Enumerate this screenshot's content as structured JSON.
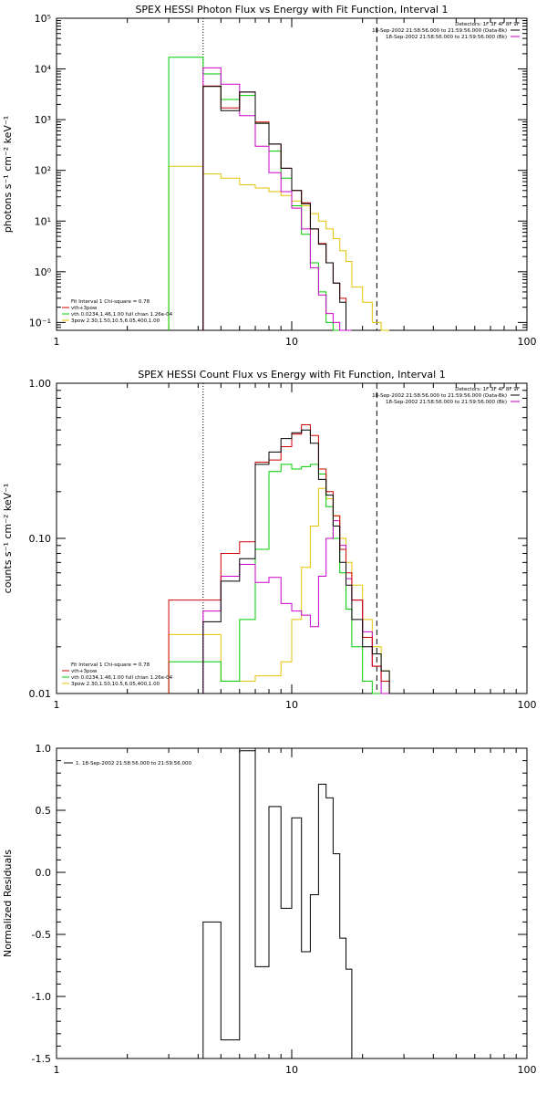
{
  "colors": {
    "black": "#000000",
    "red": "#d00000",
    "green": "#00cc00",
    "magenta": "#cc00cc",
    "yellow": "#e6c200"
  },
  "chart_data": [
    {
      "type": "line",
      "title": "SPEX HESSI Photon Flux vs Energy with Fit Function, Interval 1",
      "ylabel": "photons s⁻¹ cm⁻² keV⁻¹",
      "xscale": "log",
      "yscale": "log",
      "xlim": [
        1,
        100
      ],
      "ylim": [
        0.07,
        100000
      ],
      "xticks": [
        "1",
        "10",
        "100"
      ],
      "yticks": [
        "10⁻¹",
        "10⁰",
        "10¹",
        "10²",
        "10³",
        "10⁴",
        "10⁵"
      ],
      "vlines": [
        {
          "x": 4.2,
          "style": "dotted"
        },
        {
          "x": 23.0,
          "style": "dashed"
        }
      ],
      "legend_top": [
        "Detectors: 1F 3F 4F 8F 9F",
        "18-Sep-2002 21:58:56.000 to 21:59:56.000 (Data-Bk)",
        "18-Sep-2002 21:58:56.000 to 21:59:56.000 (Bk)"
      ],
      "legend_bottom": [
        "Fit Interval 1    Chi-square = 0.78",
        "vth+3pow",
        "vth 0.0234,1.46,1.00  full chian 1.26e-04",
        "3pow 2.30,1.50,10.5,6.05,400,1.00"
      ],
      "edges": [
        3,
        4.2,
        5,
        6,
        7,
        8,
        9,
        10,
        11,
        12,
        13,
        14,
        15,
        16,
        17,
        18,
        20,
        22,
        24,
        26
      ],
      "series": [
        {
          "name": "Data-Bk",
          "color": "black",
          "values": [
            null,
            4500,
            1500,
            3500,
            850,
            330,
            110,
            40,
            22,
            7,
            3.5,
            1.5,
            0.6,
            0.25,
            null,
            null,
            null,
            null,
            null
          ]
        },
        {
          "name": "vth+3pow",
          "color": "red",
          "values": [
            null,
            4600,
            1700,
            3500,
            900,
            330,
            110,
            40,
            23,
            7,
            3.6,
            1.5,
            0.6,
            0.3,
            null,
            null,
            null,
            null,
            null
          ]
        },
        {
          "name": "vth",
          "color": "green",
          "values": [
            17000,
            8000,
            2500,
            3000,
            850,
            240,
            70,
            20,
            5.5,
            1.5,
            0.4,
            0.1,
            0.04,
            null,
            null,
            null,
            null,
            null,
            null
          ]
        },
        {
          "name": "3pow",
          "color": "yellow",
          "values": [
            120,
            85,
            70,
            52,
            45,
            38,
            32,
            25,
            20,
            14,
            10,
            7,
            4.5,
            2.6,
            1.6,
            0.5,
            0.25,
            0.1,
            0.05
          ]
        },
        {
          "name": "Bk",
          "color": "magenta",
          "values": [
            null,
            10500,
            5000,
            1200,
            300,
            90,
            38,
            18,
            7,
            1.2,
            0.35,
            0.15,
            0.1,
            0.07,
            0.05,
            null,
            null,
            null,
            null
          ]
        }
      ]
    },
    {
      "type": "line",
      "title": "SPEX HESSI Count Flux vs Energy with Fit Function, Interval 1",
      "ylabel": "counts s⁻¹ cm⁻² keV⁻¹",
      "xscale": "log",
      "yscale": "log",
      "xlim": [
        1,
        100
      ],
      "ylim": [
        0.01,
        1.0
      ],
      "xticks": [
        "1",
        "10",
        "100"
      ],
      "yticks": [
        "0.01",
        "0.10",
        "1.00"
      ],
      "vlines": [
        {
          "x": 4.2,
          "style": "dotted"
        },
        {
          "x": 23.0,
          "style": "dashed"
        }
      ],
      "legend_top": [
        "Detectors: 1F 3F 4F 8F 9F",
        "18-Sep-2002 21:58:56.000 to 21:59:56.000 (Data-Bk)",
        "18-Sep-2002 21:58:56.000 to 21:59:56.000 (Bk)"
      ],
      "legend_bottom": [
        "Fit Interval 1    Chi-square = 0.78",
        "vth+3pow",
        "vth 0.0234,1.46,1.00  full chian 1.26e-04",
        "3pow 2.30,1.50,10.5,6.05,400,1.00"
      ],
      "edges": [
        3,
        4.2,
        5,
        6,
        7,
        8,
        9,
        10,
        11,
        12,
        13,
        14,
        15,
        16,
        17,
        18,
        20,
        22,
        24,
        26,
        28
      ],
      "series": [
        {
          "name": "Data-Bk",
          "color": "black",
          "values": [
            null,
            0.029,
            0.053,
            0.074,
            0.3,
            0.36,
            0.44,
            0.48,
            0.5,
            0.41,
            0.24,
            0.19,
            0.12,
            0.07,
            0.05,
            0.03,
            0.02,
            0.018,
            0.014,
            0.01
          ]
        },
        {
          "name": "vth+3pow",
          "color": "red",
          "values": [
            0.04,
            0.04,
            0.08,
            0.095,
            0.31,
            0.32,
            0.39,
            0.47,
            0.54,
            0.46,
            0.28,
            0.2,
            0.14,
            0.085,
            0.06,
            0.04,
            0.023,
            0.015,
            0.012,
            0.01
          ]
        },
        {
          "name": "vth",
          "color": "green",
          "values": [
            0.016,
            0.016,
            0.012,
            0.03,
            0.085,
            0.27,
            0.3,
            0.28,
            0.29,
            0.3,
            0.26,
            0.16,
            0.1,
            0.06,
            0.035,
            0.02,
            0.012,
            0.01,
            null,
            null
          ]
        },
        {
          "name": "3pow",
          "color": "yellow",
          "values": [
            0.024,
            0.024,
            0.012,
            0.012,
            0.013,
            0.013,
            0.016,
            0.03,
            0.065,
            0.12,
            0.21,
            0.18,
            0.14,
            0.1,
            0.07,
            0.05,
            0.03,
            0.02,
            0.014,
            0.01
          ]
        },
        {
          "name": "Bk",
          "color": "magenta",
          "values": [
            null,
            0.034,
            0.057,
            0.068,
            0.052,
            0.056,
            0.038,
            0.034,
            0.032,
            0.027,
            0.057,
            0.1,
            0.13,
            0.09,
            0.055,
            0.04,
            0.025,
            0.015,
            0.01,
            null
          ]
        }
      ]
    },
    {
      "type": "line",
      "title": "",
      "ylabel": "Normalized Residuals",
      "xscale": "log",
      "yscale": "linear",
      "xlim": [
        1,
        100
      ],
      "ylim": [
        -1.5,
        1.0
      ],
      "xticks": [
        "1",
        "10",
        "100"
      ],
      "yticks": [
        "-1.5",
        "-1.0",
        "-0.5",
        "0.0",
        "0.5",
        "1.0"
      ],
      "legend_top": [
        "1. 18-Sep-2002 21:58:56.000 to 21:59:56.000"
      ],
      "edges": [
        4.2,
        5,
        6,
        7,
        8,
        9,
        10,
        11,
        12,
        13,
        14,
        15,
        16,
        17,
        18,
        20,
        22,
        24
      ],
      "series": [
        {
          "name": "1. 18-Sep-2002 21:58:56.000 to 21:59:56.000",
          "color": "black",
          "values": [
            -0.4,
            -1.35,
            0.98,
            -0.76,
            0.53,
            -0.29,
            0.44,
            -0.64,
            -0.18,
            0.71,
            0.6,
            0.15,
            -0.53,
            -0.78,
            null,
            null,
            null
          ]
        }
      ]
    }
  ]
}
